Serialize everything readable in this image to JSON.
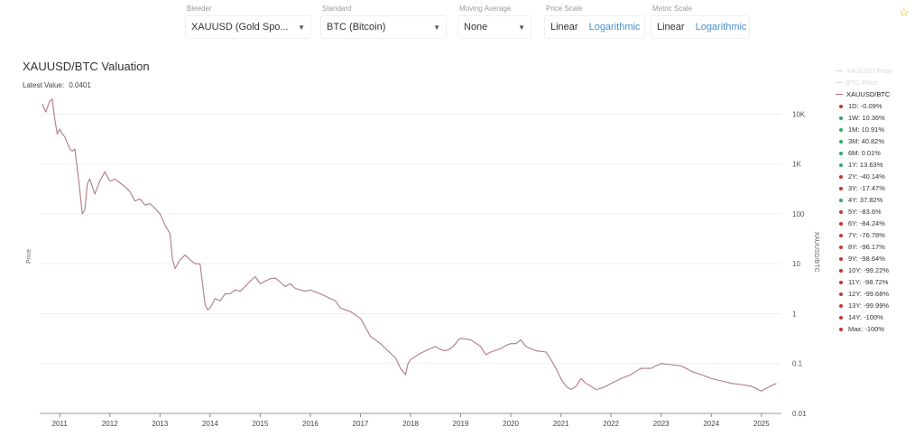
{
  "controls": {
    "bleeder": {
      "label": "Bleeder",
      "value": "XAUUSD (Gold Spo..."
    },
    "standard": {
      "label": "Standard",
      "value": "BTC (Bitcoin)"
    },
    "moving_average": {
      "label": "Moving Average",
      "value": "None"
    },
    "price_scale": {
      "label": "Price Scale",
      "options": [
        "Linear",
        "Logarithmic"
      ],
      "selected": "Logarithmic"
    },
    "metric_scale": {
      "label": "Metric Scale",
      "options": [
        "Linear",
        "Logarithmic"
      ],
      "selected": "Logarithmic"
    }
  },
  "favorite_icon": "star-icon",
  "header": {
    "title": "XAUUSD/BTC Valuation",
    "latest_label": "Latest Value:",
    "latest_value": "0.0401"
  },
  "legend": {
    "lines": [
      {
        "label": "XAUUSD Price",
        "color": "#d5d9de",
        "faded": true
      },
      {
        "label": "BTC Price",
        "color": "#d5d9de",
        "faded": true
      },
      {
        "label": "XAUUSD/BTC",
        "color": "#b07a82",
        "faded": false
      }
    ],
    "returns": [
      {
        "label": "1D: -0.09%",
        "color": "#c0392b"
      },
      {
        "label": "1W: 10.36%",
        "color": "#27ae60"
      },
      {
        "label": "1M: 10.91%",
        "color": "#27ae60"
      },
      {
        "label": "3M: 40.82%",
        "color": "#27ae60"
      },
      {
        "label": "6M: 0.01%",
        "color": "#27ae60"
      },
      {
        "label": "1Y: 13.63%",
        "color": "#27ae60"
      },
      {
        "label": "2Y: -40.14%",
        "color": "#c0392b"
      },
      {
        "label": "3Y: -17.47%",
        "color": "#c0392b"
      },
      {
        "label": "4Y: 37.82%",
        "color": "#27ae60"
      },
      {
        "label": "5Y: -83.6%",
        "color": "#c0392b"
      },
      {
        "label": "6Y: -84.24%",
        "color": "#c0392b"
      },
      {
        "label": "7Y: -76.78%",
        "color": "#c0392b"
      },
      {
        "label": "8Y: -96.17%",
        "color": "#c0392b"
      },
      {
        "label": "9Y: -98.64%",
        "color": "#c0392b"
      },
      {
        "label": "10Y: -99.22%",
        "color": "#c0392b"
      },
      {
        "label": "11Y: -98.72%",
        "color": "#c0392b"
      },
      {
        "label": "12Y: -99.68%",
        "color": "#c0392b"
      },
      {
        "label": "13Y: -99.99%",
        "color": "#c0392b"
      },
      {
        "label": "14Y: -100%",
        "color": "#c0392b"
      },
      {
        "label": "Max: -100%",
        "color": "#c0392b"
      }
    ]
  },
  "chart_data": {
    "type": "line",
    "title": "XAUUSD/BTC Valuation",
    "xlabel": "",
    "ylabel_left": "Price",
    "ylabel_right": "XAUUSD/BTC",
    "y_scale": "log",
    "ylim": [
      0.01,
      30000
    ],
    "xlim": [
      2010.6,
      2025.4
    ],
    "x_ticks": [
      2011,
      2012,
      2013,
      2014,
      2015,
      2016,
      2017,
      2018,
      2019,
      2020,
      2021,
      2022,
      2023,
      2024,
      2025
    ],
    "x_tick_labels": [
      "2011",
      "2012",
      "2013",
      "2014",
      "2015",
      "2016",
      "2017",
      "2018",
      "2019",
      "2020",
      "2021",
      "2022",
      "2023",
      "2024",
      "2025"
    ],
    "y_ticks": [
      0.01,
      0.1,
      1,
      10,
      100,
      1000,
      10000
    ],
    "y_tick_labels": [
      "0.01",
      "0.1",
      "1",
      "10",
      "100",
      "1K",
      "10K"
    ],
    "grid": true,
    "line_color": "#b07a82",
    "series": [
      {
        "name": "XAUUSD/BTC",
        "x": [
          2010.65,
          2010.72,
          2010.8,
          2010.85,
          2010.9,
          2010.95,
          2011.0,
          2011.05,
          2011.1,
          2011.2,
          2011.25,
          2011.3,
          2011.35,
          2011.4,
          2011.45,
          2011.5,
          2011.55,
          2011.6,
          2011.7,
          2011.8,
          2011.9,
          2012.0,
          2012.1,
          2012.2,
          2012.3,
          2012.4,
          2012.5,
          2012.6,
          2012.7,
          2012.8,
          2012.9,
          2013.0,
          2013.1,
          2013.2,
          2013.25,
          2013.3,
          2013.4,
          2013.5,
          2013.6,
          2013.7,
          2013.8,
          2013.85,
          2013.9,
          2013.95,
          2014.0,
          2014.1,
          2014.2,
          2014.3,
          2014.4,
          2014.5,
          2014.6,
          2014.7,
          2014.8,
          2014.9,
          2015.0,
          2015.1,
          2015.2,
          2015.3,
          2015.4,
          2015.5,
          2015.6,
          2015.7,
          2015.8,
          2015.9,
          2016.0,
          2016.2,
          2016.4,
          2016.5,
          2016.6,
          2016.8,
          2017.0,
          2017.2,
          2017.4,
          2017.6,
          2017.7,
          2017.8,
          2017.9,
          2017.95,
          2018.0,
          2018.1,
          2018.2,
          2018.3,
          2018.4,
          2018.5,
          2018.6,
          2018.7,
          2018.8,
          2018.9,
          2018.95,
          2019.0,
          2019.2,
          2019.4,
          2019.5,
          2019.6,
          2019.8,
          2019.9,
          2020.0,
          2020.1,
          2020.2,
          2020.3,
          2020.5,
          2020.7,
          2020.8,
          2020.9,
          2021.0,
          2021.1,
          2021.2,
          2021.3,
          2021.4,
          2021.5,
          2021.6,
          2021.7,
          2021.8,
          2021.9,
          2022.0,
          2022.2,
          2022.4,
          2022.5,
          2022.6,
          2022.8,
          2022.9,
          2023.0,
          2023.2,
          2023.4,
          2023.5,
          2023.6,
          2023.7,
          2023.8,
          2023.9,
          2024.0,
          2024.2,
          2024.4,
          2024.6,
          2024.8,
          2025.0,
          2025.1,
          2025.2,
          2025.3
        ],
        "y": [
          16000,
          11000,
          18000,
          20000,
          8000,
          4000,
          5000,
          4000,
          3500,
          2000,
          1800,
          2000,
          800,
          300,
          100,
          120,
          400,
          500,
          250,
          450,
          700,
          450,
          500,
          420,
          350,
          280,
          180,
          200,
          150,
          160,
          130,
          100,
          60,
          40,
          12,
          8,
          12,
          15,
          12,
          10,
          10,
          4,
          1.5,
          1.2,
          1.3,
          2,
          1.8,
          2.5,
          2.5,
          3.0,
          2.8,
          3.5,
          4.5,
          5.5,
          4.0,
          4.5,
          5.0,
          5.2,
          4.3,
          3.5,
          4.0,
          3.2,
          3.0,
          2.8,
          3.0,
          2.5,
          2.0,
          1.8,
          1.3,
          1.1,
          0.8,
          0.35,
          0.25,
          0.16,
          0.13,
          0.08,
          0.06,
          0.1,
          0.12,
          0.14,
          0.16,
          0.18,
          0.2,
          0.22,
          0.19,
          0.18,
          0.2,
          0.25,
          0.3,
          0.32,
          0.3,
          0.22,
          0.15,
          0.17,
          0.2,
          0.23,
          0.25,
          0.25,
          0.3,
          0.22,
          0.18,
          0.17,
          0.12,
          0.08,
          0.05,
          0.035,
          0.03,
          0.035,
          0.05,
          0.04,
          0.035,
          0.03,
          0.032,
          0.035,
          0.04,
          0.05,
          0.06,
          0.07,
          0.08,
          0.08,
          0.09,
          0.1,
          0.095,
          0.09,
          0.08,
          0.07,
          0.065,
          0.06,
          0.055,
          0.05,
          0.045,
          0.04,
          0.038,
          0.035,
          0.028,
          0.032,
          0.036,
          0.04
        ]
      }
    ]
  }
}
